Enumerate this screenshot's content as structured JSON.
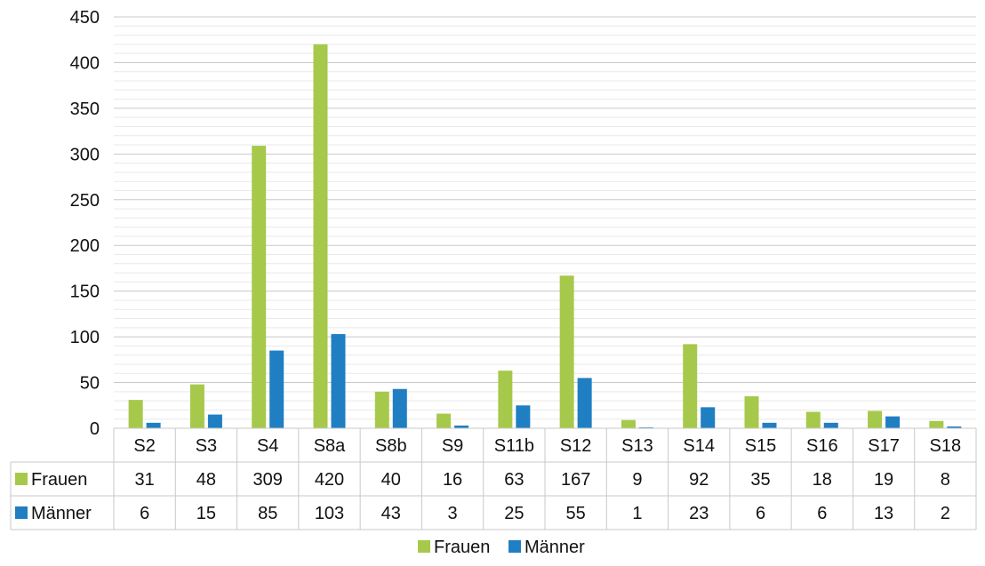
{
  "chart_data": {
    "type": "bar",
    "categories": [
      "S2",
      "S3",
      "S4",
      "S8a",
      "S8b",
      "S9",
      "S11b",
      "S12",
      "S13",
      "S14",
      "S15",
      "S16",
      "S17",
      "S18"
    ],
    "series": [
      {
        "name": "Frauen",
        "color": "#A6C94B",
        "values": [
          31,
          48,
          309,
          420,
          40,
          16,
          63,
          167,
          9,
          92,
          35,
          18,
          19,
          8
        ]
      },
      {
        "name": "Männer",
        "color": "#1F7FC2",
        "values": [
          6,
          15,
          85,
          103,
          43,
          3,
          25,
          55,
          1,
          23,
          6,
          6,
          13,
          2
        ]
      }
    ],
    "ylim": [
      0,
      450
    ],
    "y_ticks": [
      0,
      50,
      100,
      150,
      200,
      250,
      300,
      350,
      400,
      450
    ],
    "minor_grid_step": 10,
    "grid": true,
    "data_table": true,
    "legend_position": "bottom"
  }
}
